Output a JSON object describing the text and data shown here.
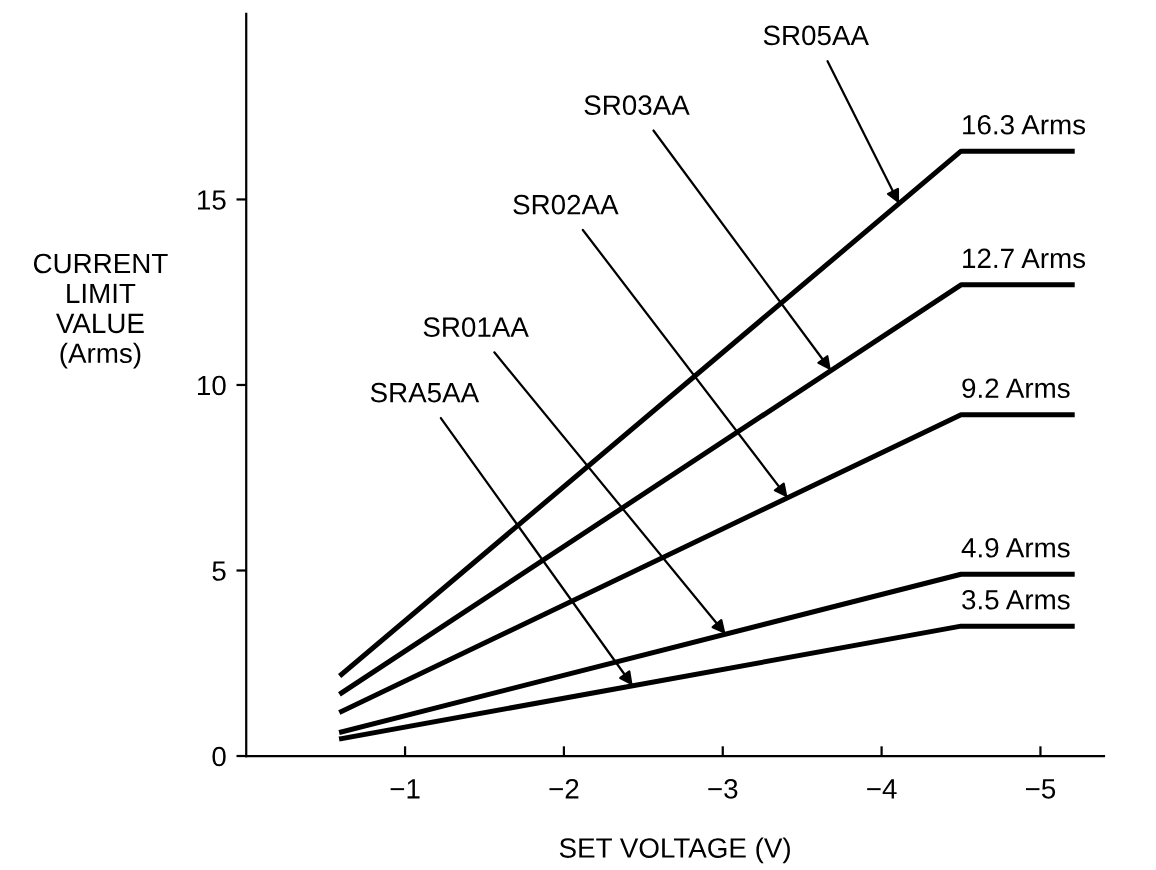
{
  "chart_data": {
    "type": "line",
    "xlabel": "SET VOLTAGE (V)",
    "ylabel": "CURRENT\nLIMIT\nVALUE\n(Arms)",
    "x": [
      -0.6,
      -4.5,
      -5.2
    ],
    "series": [
      {
        "name": "SR05AA",
        "color": "#000000",
        "values": [
          2.2,
          16.3,
          16.3
        ]
      },
      {
        "name": "SR03AA",
        "color": "#000000",
        "values": [
          1.7,
          12.7,
          12.7
        ]
      },
      {
        "name": "SR02AA",
        "color": "#000000",
        "values": [
          1.2,
          9.2,
          9.2
        ]
      },
      {
        "name": "SR01AA",
        "color": "#000000",
        "values": [
          0.65,
          4.9,
          4.9
        ]
      },
      {
        "name": "SRA5AA",
        "color": "#000000",
        "values": [
          0.47,
          3.5,
          3.5
        ]
      }
    ],
    "annotations": [
      {
        "text": "16.3 Arms",
        "y": 16.3
      },
      {
        "text": "12.7 Arms",
        "y": 12.7
      },
      {
        "text": "9.2 Arms",
        "y": 9.2
      },
      {
        "text": "4.9 Arms",
        "y": 4.9
      },
      {
        "text": "3.5 Arms",
        "y": 3.5
      }
    ],
    "xlim": [
      0,
      -5.4
    ],
    "ylim": [
      0,
      20
    ],
    "xticks": [
      {
        "value": -1,
        "label": "−1"
      },
      {
        "value": -2,
        "label": "−2"
      },
      {
        "value": -3,
        "label": "−3"
      },
      {
        "value": -4,
        "label": "−4"
      },
      {
        "value": -5,
        "label": "−5"
      }
    ],
    "yticks": [
      0,
      5,
      10,
      15
    ],
    "grid": false,
    "legend": false,
    "marker": "none",
    "line_style": "solid"
  }
}
